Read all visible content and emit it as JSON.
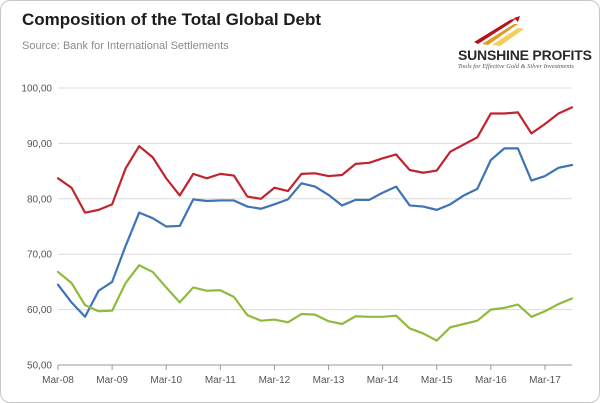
{
  "header": {
    "title": "Composition of the Total Global Debt",
    "source": "Source: Bank for International Settlements"
  },
  "logo": {
    "name": "SUNSHINE PROFITS",
    "tagline": "Tools for Effective Gold & Silver Investments",
    "colors": [
      "#b5121b",
      "#e29b22",
      "#f3cf5a"
    ]
  },
  "chart_data": {
    "type": "line",
    "title": "Composition of the Total Global Debt",
    "xlabel": "",
    "ylabel": "",
    "ylim": [
      50,
      100
    ],
    "y_ticks": [
      "50,00",
      "60,00",
      "70,00",
      "80,00",
      "90,00",
      "100,00"
    ],
    "x_tick_labels": [
      "Mar-08",
      "Mar-09",
      "Mar-10",
      "Mar-11",
      "Mar-12",
      "Mar-13",
      "Mar-14",
      "Mar-15",
      "Mar-16",
      "Mar-17"
    ],
    "grid": "horizontal",
    "legend": "none",
    "x": [
      "Mar-08",
      "Jun-08",
      "Sep-08",
      "Dec-08",
      "Mar-09",
      "Jun-09",
      "Sep-09",
      "Dec-09",
      "Mar-10",
      "Jun-10",
      "Sep-10",
      "Dec-10",
      "Mar-11",
      "Jun-11",
      "Sep-11",
      "Dec-11",
      "Mar-12",
      "Jun-12",
      "Sep-12",
      "Dec-12",
      "Mar-13",
      "Jun-13",
      "Sep-13",
      "Dec-13",
      "Mar-14",
      "Jun-14",
      "Sep-14",
      "Dec-14",
      "Mar-15",
      "Jun-15",
      "Sep-15",
      "Dec-15",
      "Mar-16",
      "Jun-16",
      "Sep-16",
      "Dec-16",
      "Mar-17",
      "Jun-17",
      "Sep-17"
    ],
    "series": [
      {
        "color": "#c0252f",
        "values": [
          83.7,
          82.0,
          77.5,
          78.0,
          79.0,
          85.5,
          89.5,
          87.5,
          83.7,
          80.6,
          84.5,
          83.7,
          84.5,
          84.2,
          80.4,
          80.0,
          82.0,
          81.4,
          84.5,
          84.6,
          84.1,
          84.3,
          86.3,
          86.5,
          87.3,
          88.0,
          85.2,
          84.7,
          85.1,
          88.5,
          89.8,
          91.1,
          95.4,
          95.4,
          95.6,
          91.8,
          93.5,
          95.4,
          96.5
        ]
      },
      {
        "color": "#3d74b5",
        "values": [
          64.5,
          61.3,
          58.7,
          63.4,
          65.0,
          71.5,
          77.5,
          76.5,
          75.0,
          75.1,
          79.9,
          79.6,
          79.7,
          79.7,
          78.6,
          78.2,
          79.0,
          79.9,
          82.8,
          82.2,
          80.7,
          78.8,
          79.8,
          79.8,
          81.1,
          82.2,
          78.8,
          78.6,
          78.0,
          79.0,
          80.6,
          81.8,
          87.0,
          89.1,
          89.1,
          83.3,
          84.1,
          85.6,
          86.1
        ]
      },
      {
        "color": "#8fba3e",
        "values": [
          66.8,
          64.8,
          60.8,
          59.7,
          59.8,
          64.8,
          68.0,
          66.8,
          64.0,
          61.3,
          64.0,
          63.4,
          63.5,
          62.3,
          59.0,
          58.0,
          58.2,
          57.7,
          59.2,
          59.1,
          57.9,
          57.4,
          58.8,
          58.7,
          58.7,
          58.9,
          56.6,
          55.7,
          54.4,
          56.8,
          57.4,
          58.0,
          60.0,
          60.3,
          60.9,
          58.7,
          59.7,
          61.0,
          62.0
        ]
      }
    ]
  }
}
